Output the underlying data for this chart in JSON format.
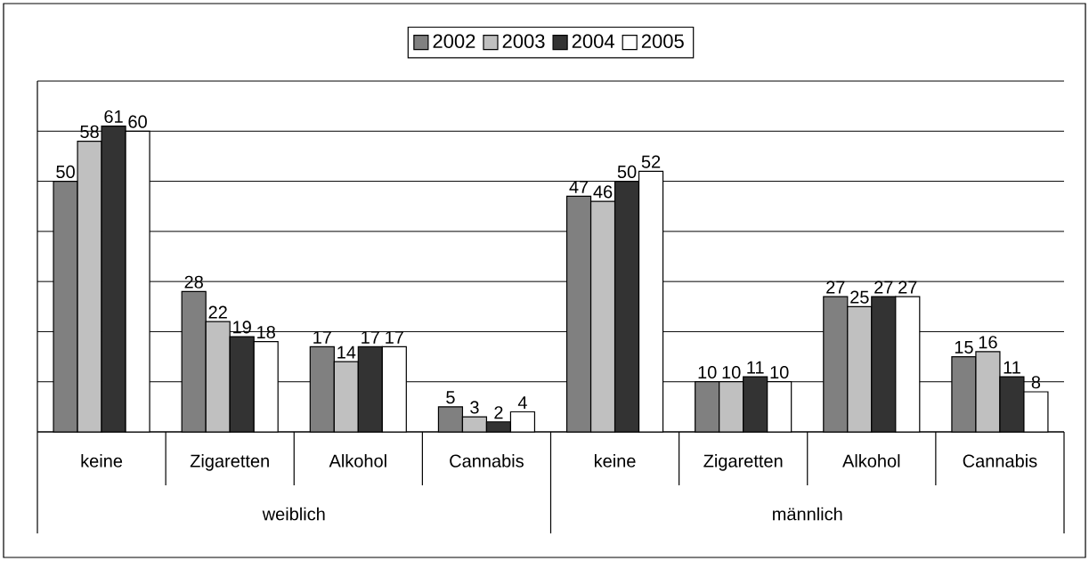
{
  "chart_data": {
    "type": "bar",
    "categories": [
      "keine",
      "Zigaretten",
      "Alkohol",
      "Cannabis",
      "keine",
      "Zigaretten",
      "Alkohol",
      "Cannabis"
    ],
    "series": [
      {
        "name": "2002",
        "color": "#808080",
        "values": [
          50,
          28,
          17,
          5,
          47,
          10,
          27,
          15
        ]
      },
      {
        "name": "2003",
        "color": "#c0c0c0",
        "values": [
          58,
          22,
          14,
          3,
          46,
          10,
          25,
          16
        ]
      },
      {
        "name": "2004",
        "color": "#333333",
        "values": [
          61,
          19,
          17,
          2,
          50,
          11,
          27,
          11
        ]
      },
      {
        "name": "2005",
        "color": "#ffffff",
        "values": [
          60,
          18,
          17,
          4,
          52,
          10,
          27,
          8
        ]
      }
    ],
    "annotations": [
      "weiblich",
      "männlich"
    ],
    "ylim": [
      0,
      70
    ],
    "yticks": [
      {
        "value": 0,
        "label": null
      },
      {
        "value": 10,
        "label": null
      },
      {
        "value": 20,
        "label": null
      },
      {
        "value": 30,
        "label": null
      },
      {
        "value": 40,
        "label": null
      },
      {
        "value": 50,
        "label": null
      },
      {
        "value": 60,
        "label": null
      },
      {
        "value": 70,
        "label": null
      }
    ],
    "tick_labels": "x",
    "grid": "y",
    "legend": "top",
    "data_labels": true
  }
}
